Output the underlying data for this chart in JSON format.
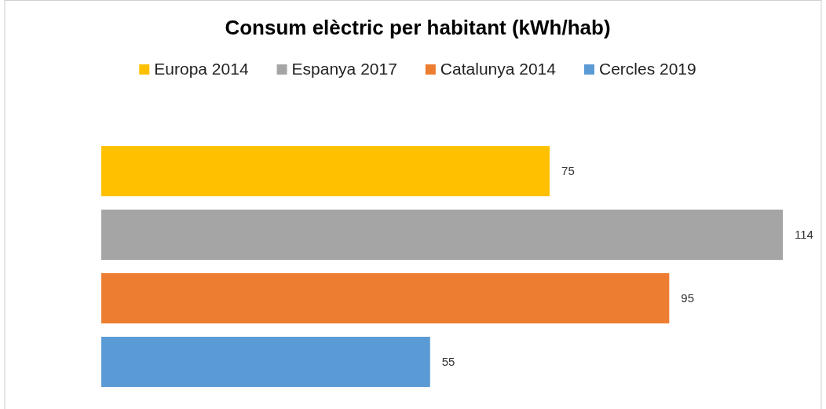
{
  "chart_data": {
    "type": "bar",
    "title": "Consum elèctric per habitant (kWh/hab)",
    "orientation": "horizontal",
    "categories": [
      null
    ],
    "series": [
      {
        "name": "Europa 2014",
        "color": "#ffc000",
        "values": [
          75
        ]
      },
      {
        "name": "Espanya 2017",
        "color": "#a5a5a5",
        "values": [
          114
        ]
      },
      {
        "name": "Catalunya 2014",
        "color": "#ed7d31",
        "values": [
          95
        ]
      },
      {
        "name": "Cercles 2019",
        "color": "#5b9bd5",
        "values": [
          55
        ]
      }
    ],
    "data_labels": true,
    "legend": "top"
  }
}
